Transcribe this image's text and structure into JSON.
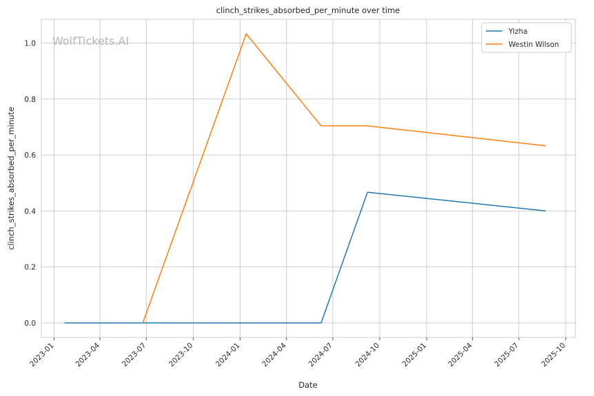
{
  "chart_data": {
    "type": "line",
    "title": "clinch_strikes_absorbed_per_minute over time",
    "xlabel": "Date",
    "ylabel": "clinch_strikes_absorbed_per_minute",
    "watermark": "WolfTickets.AI",
    "x_range": [
      "2022-12-07",
      "2025-10-20"
    ],
    "ylim": [
      -0.052,
      1.085
    ],
    "x_ticks": [
      "2023-01",
      "2023-04",
      "2023-07",
      "2023-10",
      "2024-01",
      "2024-04",
      "2024-07",
      "2024-10",
      "2025-01",
      "2025-04",
      "2025-07",
      "2025-10"
    ],
    "y_ticks": [
      0.0,
      0.2,
      0.4,
      0.6,
      0.8,
      1.0
    ],
    "y_tick_labels": [
      "0.0",
      "0.2",
      "0.4",
      "0.6",
      "0.8",
      "1.0"
    ],
    "grid": true,
    "legend_position": "top-right",
    "series": [
      {
        "name": "Yizha",
        "color": "#1f77b4",
        "points": [
          {
            "x": "2023-01-21",
            "y": 0.0
          },
          {
            "x": "2024-06-08",
            "y": 0.0
          },
          {
            "x": "2024-09-07",
            "y": 0.467
          },
          {
            "x": "2025-08-23",
            "y": 0.4
          }
        ]
      },
      {
        "name": "Westin Wilson",
        "color": "#ff7f0e",
        "points": [
          {
            "x": "2023-06-24",
            "y": 0.0
          },
          {
            "x": "2024-01-13",
            "y": 1.033
          },
          {
            "x": "2024-06-08",
            "y": 0.704
          },
          {
            "x": "2024-09-07",
            "y": 0.704
          },
          {
            "x": "2025-08-23",
            "y": 0.633
          }
        ]
      }
    ]
  }
}
